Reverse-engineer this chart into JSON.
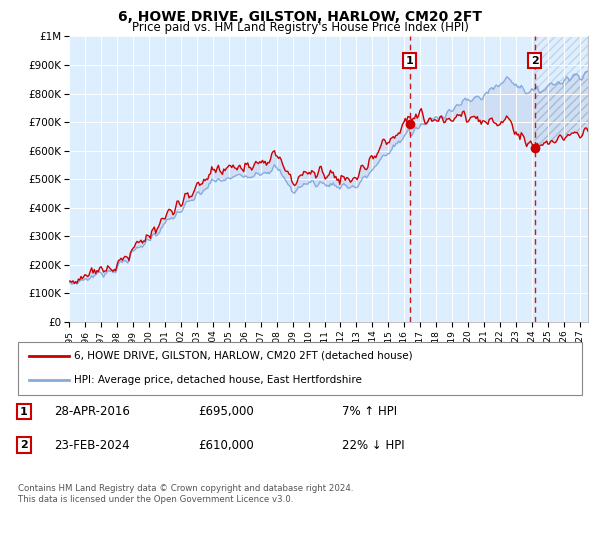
{
  "title": "6, HOWE DRIVE, GILSTON, HARLOW, CM20 2FT",
  "subtitle": "Price paid vs. HM Land Registry's House Price Index (HPI)",
  "legend_property": "6, HOWE DRIVE, GILSTON, HARLOW, CM20 2FT (detached house)",
  "legend_hpi": "HPI: Average price, detached house, East Hertfordshire",
  "transaction1": {
    "label": "1",
    "date": "28-APR-2016",
    "price": "£695,000",
    "hpi": "7% ↑ HPI"
  },
  "transaction2": {
    "label": "2",
    "date": "23-FEB-2024",
    "price": "£610,000",
    "hpi": "22% ↓ HPI"
  },
  "footer": "Contains HM Land Registry data © Crown copyright and database right 2024.\nThis data is licensed under the Open Government Licence v3.0.",
  "property_color": "#cc0000",
  "hpi_color": "#88aadd",
  "vline_color": "#cc0000",
  "plot_bg": "#ddeeff",
  "ylim": [
    0,
    1000000
  ],
  "xlim_start": 1995.0,
  "xlim_end": 2027.5,
  "transaction1_x": 2016.33,
  "transaction1_y": 695000,
  "transaction2_x": 2024.15,
  "transaction2_y": 610000
}
